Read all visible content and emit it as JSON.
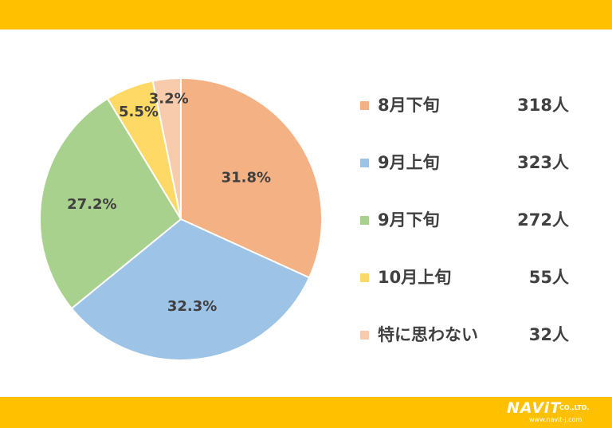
{
  "chart_data": {
    "type": "pie",
    "categories": [
      "8月下旬",
      "9月上旬",
      "9月下旬",
      "10月上旬",
      "特に思わない"
    ],
    "values": [
      31.8,
      32.3,
      27.2,
      5.5,
      3.2
    ],
    "value_labels": [
      "31.8%",
      "32.3%",
      "27.2%",
      "5.5%",
      "3.2%"
    ],
    "counts": [
      "318人",
      "323人",
      "272人",
      "55人",
      "32人"
    ],
    "colors": [
      "#f4b183",
      "#9dc3e6",
      "#a9d18e",
      "#ffd966",
      "#f8cbad"
    ],
    "start": "12 o'clock",
    "direction": "clockwise",
    "legend": "right"
  },
  "theme": {
    "band_color": "#ffc000",
    "text_color": "#404040"
  },
  "logo": {
    "main": "NAViT",
    "sub": "CO.,LTD.",
    "url": "www.navit-j.com"
  }
}
